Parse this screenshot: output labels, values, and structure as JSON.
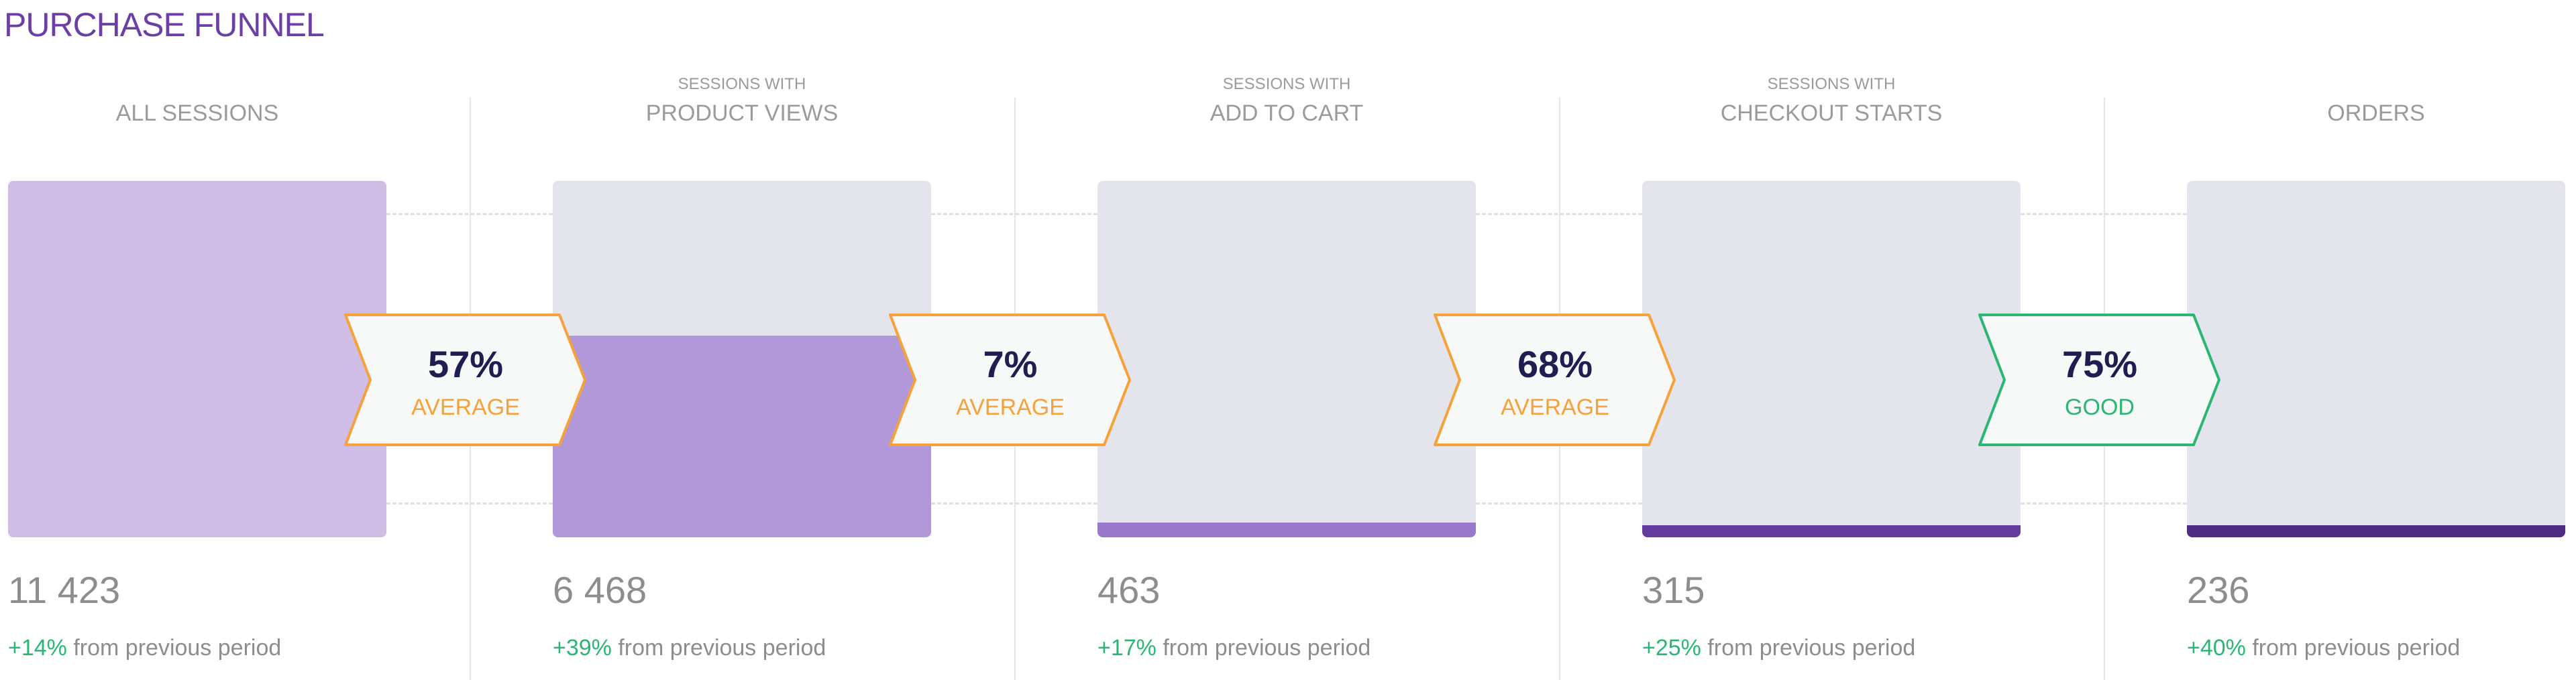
{
  "title": "PURCHASE FUNNEL",
  "change_suffix": "from previous period",
  "colors": {
    "title": "#6b3fa6",
    "bar_background": "#e3e4ec",
    "average": "#f6a13a",
    "good": "#2bb673"
  },
  "chart_data": {
    "type": "bar",
    "categories": [
      "ALL SESSIONS",
      "PRODUCT VIEWS",
      "ADD TO CART",
      "CHECKOUT STARTS",
      "ORDERS"
    ],
    "values": [
      11423,
      6468,
      463,
      315,
      236
    ],
    "stages": [
      {
        "sublabel": "",
        "label": "ALL SESSIONS",
        "count": "11 423",
        "value": 11423,
        "change": "+14%",
        "fill_color": "#cfbde6"
      },
      {
        "sublabel": "SESSIONS WITH",
        "label": "PRODUCT VIEWS",
        "count": "6 468",
        "value": 6468,
        "change": "+39%",
        "fill_color": "#b198d8"
      },
      {
        "sublabel": "SESSIONS WITH",
        "label": "ADD TO CART",
        "count": "463",
        "value": 463,
        "change": "+17%",
        "fill_color": "#9978cc"
      },
      {
        "sublabel": "SESSIONS WITH",
        "label": "CHECKOUT STARTS",
        "count": "315",
        "value": 315,
        "change": "+25%",
        "fill_color": "#633c9e"
      },
      {
        "sublabel": "",
        "label": "ORDERS",
        "count": "236",
        "value": 236,
        "change": "+40%",
        "fill_color": "#4e2c84"
      }
    ],
    "conversions": [
      {
        "value": "57%",
        "rating": "AVERAGE",
        "status": "average"
      },
      {
        "value": "7%",
        "rating": "AVERAGE",
        "status": "average"
      },
      {
        "value": "68%",
        "rating": "AVERAGE",
        "status": "average"
      },
      {
        "value": "75%",
        "rating": "GOOD",
        "status": "good"
      }
    ]
  }
}
